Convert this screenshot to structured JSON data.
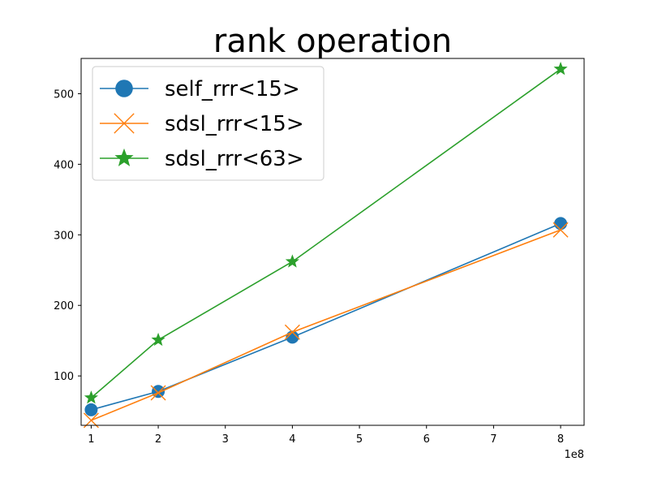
{
  "chart_data": {
    "type": "line",
    "title": "rank operation",
    "xlabel": "",
    "ylabel": "",
    "x_offset_label": "1e8",
    "xlim": [
      0.85,
      8.35
    ],
    "ylim": [
      30,
      550
    ],
    "xticks": [
      1,
      2,
      3,
      4,
      5,
      6,
      7,
      8
    ],
    "xtick_labels": [
      "1",
      "2",
      "3",
      "4",
      "5",
      "6",
      "7",
      "8"
    ],
    "yticks": [
      100,
      200,
      300,
      400,
      500
    ],
    "ytick_labels": [
      "100",
      "200",
      "300",
      "400",
      "500"
    ],
    "grid": false,
    "legend_position": "top-left",
    "x": [
      1,
      2,
      4,
      8
    ],
    "series": [
      {
        "name": "self_rrr<15>",
        "values": [
          52,
          78,
          155,
          316
        ],
        "color": "#1f77b4",
        "marker": "circle"
      },
      {
        "name": "sdsl_rrr<15>",
        "values": [
          37,
          76,
          162,
          307
        ],
        "color": "#ff7f0e",
        "marker": "x"
      },
      {
        "name": "sdsl_rrr<63>",
        "values": [
          69,
          151,
          262,
          535
        ],
        "color": "#2ca02c",
        "marker": "star"
      }
    ]
  }
}
